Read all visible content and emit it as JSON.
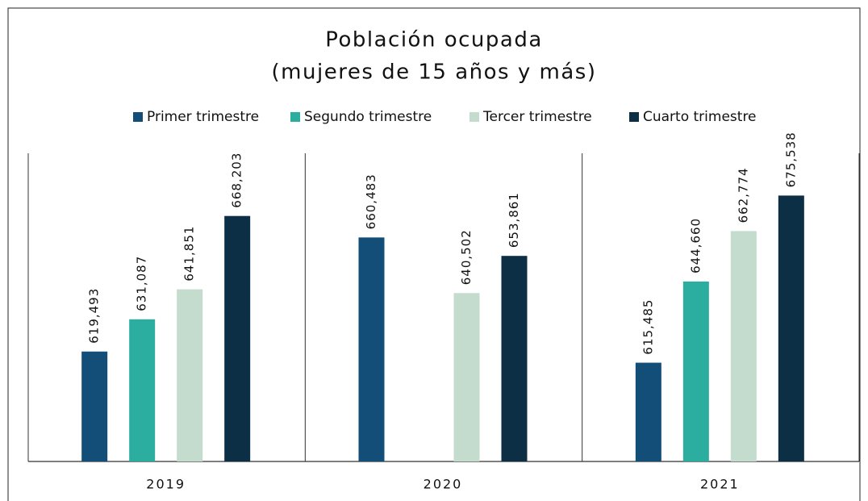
{
  "chart_data": {
    "type": "bar",
    "title": [
      "Población ocupada",
      "(mujeres de 15 años y más)"
    ],
    "categories": [
      "2019",
      "2020",
      "2021"
    ],
    "series": [
      {
        "name": "Primer trimestre",
        "color": "#124e78",
        "values": [
          619493,
          660483,
          615485
        ],
        "value_labels": [
          "619,493",
          "660,483",
          "615,485"
        ]
      },
      {
        "name": "Segundo trimestre",
        "color": "#2bae9f",
        "values": [
          631087,
          null,
          644660
        ],
        "value_labels": [
          "631,087",
          null,
          "644,660"
        ]
      },
      {
        "name": "Tercer trimestre",
        "color": "#c3dccd",
        "values": [
          641851,
          640502,
          662774
        ],
        "value_labels": [
          "641,851",
          "640,502",
          "662,774"
        ]
      },
      {
        "name": "Cuarto trimestre",
        "color": "#0d2f45",
        "values": [
          668203,
          653861,
          675538
        ],
        "value_labels": [
          "668,203",
          "653,861",
          "675,538"
        ]
      }
    ],
    "ylim": [
      580000,
      700000
    ],
    "legend": "top"
  }
}
